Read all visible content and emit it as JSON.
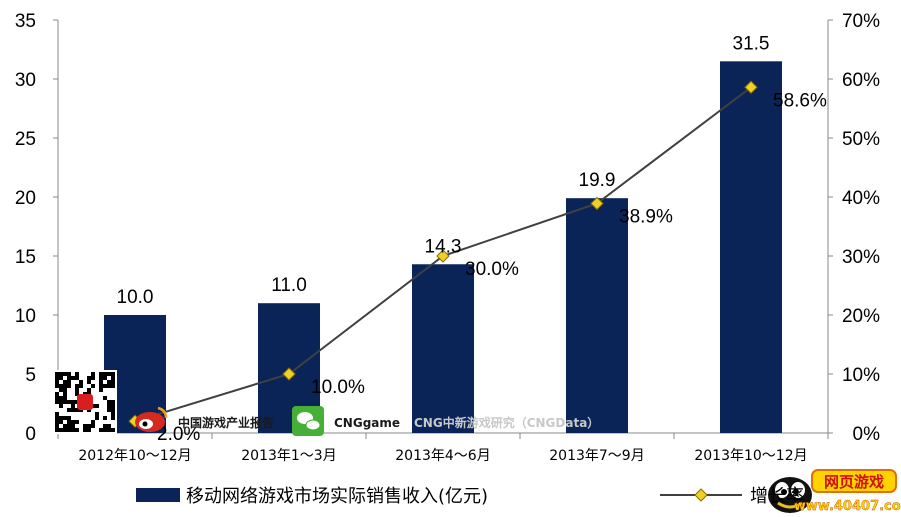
{
  "chart_data": {
    "type": "bar",
    "categories": [
      "2012年10～12月",
      "2013年1～3月",
      "2013年4～6月",
      "2013年7～9月",
      "2013年10～12月"
    ],
    "series": [
      {
        "name": "移动网络游戏市场实际销售收入(亿元)",
        "type": "bar",
        "axis": "left",
        "values": [
          10.0,
          11.0,
          14.3,
          19.9,
          31.5
        ],
        "labels": [
          "10.0",
          "11.0",
          "14.3",
          "19.9",
          "31.5"
        ],
        "color": "#0a2458"
      },
      {
        "name": "增长率",
        "type": "line",
        "axis": "right",
        "values": [
          2.0,
          10.0,
          30.0,
          38.9,
          58.6
        ],
        "labels": [
          "2.0%",
          "10.0%",
          "30.0%",
          "38.9%",
          "58.6%"
        ],
        "color": "#404040",
        "marker": "diamond",
        "marker_color": "#f0d020"
      }
    ],
    "y_left": {
      "ylim": [
        0,
        35
      ],
      "ticks": [
        "0",
        "5",
        "10",
        "15",
        "20",
        "25",
        "30",
        "35"
      ]
    },
    "y_right": {
      "ylim": [
        0,
        70
      ],
      "ticks": [
        "0%",
        "10%",
        "20%",
        "30%",
        "40%",
        "50%",
        "60%",
        "70%"
      ]
    },
    "grid": false,
    "legend_position": "bottom"
  },
  "watermarks": {
    "weibo_label": "中国游戏产业报告",
    "wechat_label": "CNGgame",
    "research_label": "CNG中新游戏研究（CNGData）",
    "site_logo_title": "网页游戏",
    "site_logo_url": "www.40407.com"
  },
  "icons": [
    "qr-code-icon",
    "weibo-icon",
    "wechat-icon",
    "site-logo-icon"
  ]
}
